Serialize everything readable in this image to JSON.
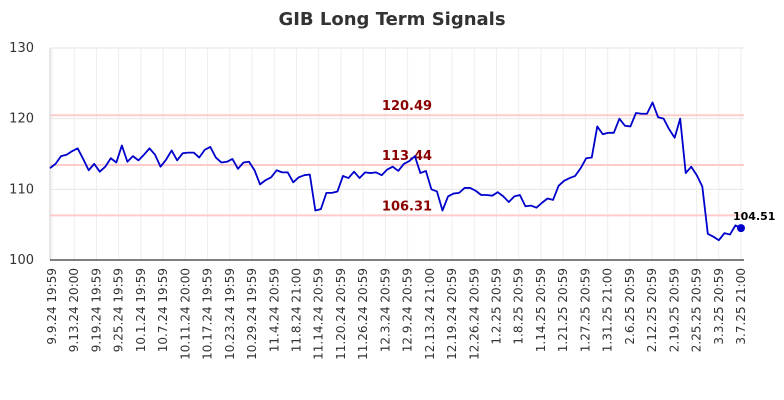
{
  "chart_data": {
    "type": "line",
    "title": "GIB Long Term Signals",
    "xlabel": "",
    "ylabel": "",
    "ylim": [
      100,
      130
    ],
    "yticks": [
      "100",
      "110",
      "120",
      "130"
    ],
    "grid": true,
    "x_tick_labels": [
      "9.9.24 19:59",
      "9.13.24 20:00",
      "9.19.24 19:59",
      "9.25.24 19:59",
      "10.1.24 19:59",
      "10.7.24 19:59",
      "10.11.24 20:00",
      "10.17.24 19:59",
      "10.23.24 19:59",
      "10.29.24 19:59",
      "11.4.24 20:59",
      "11.8.24 21:00",
      "11.14.24 20:59",
      "11.20.24 20:59",
      "11.26.24 20:59",
      "12.3.24 20:59",
      "12.9.24 20:59",
      "12.13.24 21:00",
      "12.19.24 20:59",
      "12.26.24 20:59",
      "1.2.25 20:59",
      "1.8.25 20:59",
      "1.14.25 20:59",
      "1.21.25 20:59",
      "1.27.25 20:59",
      "1.31.25 21:00",
      "2.6.25 20:59",
      "2.12.25 20:59",
      "2.19.25 20:59",
      "2.25.25 20:59",
      "3.3.25 20:59",
      "3.7.25 21:00"
    ],
    "reference_lines": [
      {
        "value": 120.49,
        "label": "120.49",
        "color": "#ffcccc",
        "label_color": "#8b0000"
      },
      {
        "value": 113.44,
        "label": "113.44",
        "color": "#ffcccc",
        "label_color": "#8b0000"
      },
      {
        "value": 106.31,
        "label": "106.31",
        "color": "#ffcccc",
        "label_color": "#8b0000"
      }
    ],
    "series": [
      {
        "color": "#0000cc",
        "values": [
          113.0,
          113.6,
          114.7,
          114.9,
          115.4,
          115.8,
          114.3,
          112.7,
          113.6,
          112.5,
          113.2,
          114.4,
          113.8,
          116.2,
          113.9,
          114.7,
          114.1,
          114.9,
          115.8,
          114.9,
          113.2,
          114.2,
          115.5,
          114.1,
          115.1,
          115.2,
          115.2,
          114.5,
          115.6,
          116.0,
          114.5,
          113.8,
          113.9,
          114.3,
          112.9,
          113.8,
          113.9,
          112.7,
          110.7,
          111.3,
          111.7,
          112.7,
          112.4,
          112.4,
          111.0,
          111.7,
          112.0,
          112.1,
          107.0,
          107.2,
          109.5,
          109.5,
          109.7,
          111.9,
          111.6,
          112.5,
          111.6,
          112.4,
          112.3,
          112.4,
          112.0,
          112.8,
          113.2,
          112.6,
          113.6,
          114.0,
          114.7,
          112.3,
          112.6,
          110.0,
          109.7,
          107.0,
          109.0,
          109.4,
          109.5,
          110.2,
          110.2,
          109.8,
          109.2,
          109.2,
          109.1,
          109.6,
          109.0,
          108.2,
          109.0,
          109.2,
          107.6,
          107.7,
          107.4,
          108.1,
          108.7,
          108.5,
          110.5,
          111.2,
          111.6,
          111.9,
          113.0,
          114.4,
          114.5,
          118.9,
          117.8,
          118.0,
          118.0,
          120.0,
          119.0,
          118.9,
          120.8,
          120.7,
          120.7,
          122.3,
          120.2,
          120.0,
          118.5,
          117.3,
          120.0,
          112.3,
          113.2,
          112.0,
          110.4,
          103.7,
          103.3,
          102.8,
          103.8,
          103.6,
          104.9,
          104.51
        ],
        "last_value_label": "104.51"
      }
    ]
  }
}
